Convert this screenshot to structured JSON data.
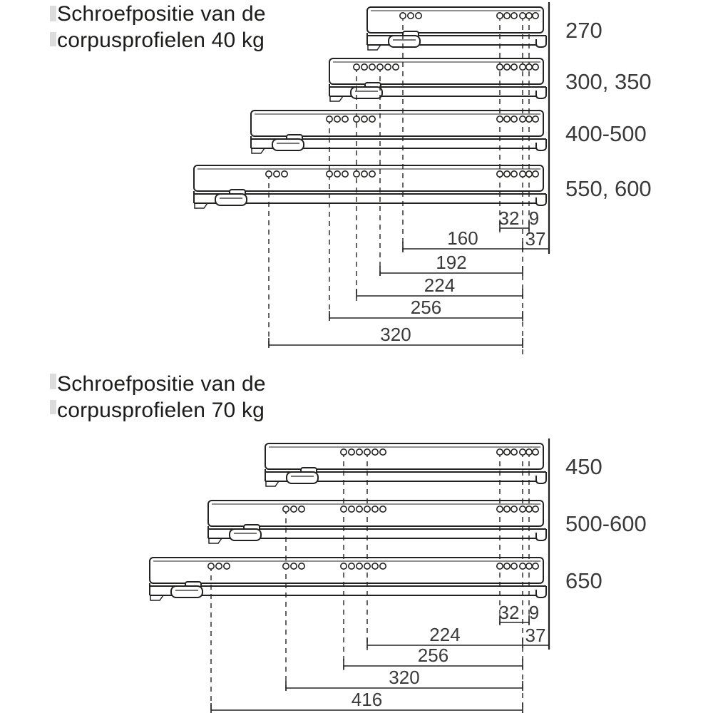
{
  "diagram": {
    "line_color": "#222220",
    "label_color": "#3a3a3a",
    "sections": [
      {
        "id": "40kg",
        "title_lines": [
          "Schroefpositie van de",
          "corpusprofielen 40 kg"
        ],
        "rails": [
          {
            "label": "270",
            "front_hole_positions_mm": [
              160
            ]
          },
          {
            "label": "300, 350",
            "front_hole_positions_mm": [
              224,
              192
            ]
          },
          {
            "label": "400-500",
            "front_hole_positions_mm": [
              256,
              224
            ]
          },
          {
            "label": "550, 600",
            "front_hole_positions_mm": [
              320,
              256,
              224
            ]
          }
        ],
        "rear_dims": {
          "hole_spacing": "32",
          "hole_offset": "9",
          "rear_distance": "37"
        },
        "length_dims": [
          "160",
          "192",
          "224",
          "256",
          "320"
        ]
      },
      {
        "id": "70kg",
        "title_lines": [
          "Schroefpositie van de",
          "corpusprofielen 70 kg"
        ],
        "rails": [
          {
            "label": "450",
            "front_hole_positions_mm": [
              256,
              224
            ]
          },
          {
            "label": "500-600",
            "front_hole_positions_mm": [
              320,
              256,
              224
            ]
          },
          {
            "label": "650",
            "front_hole_positions_mm": [
              416,
              320,
              256,
              224
            ]
          }
        ],
        "rear_dims": {
          "hole_spacing": "32",
          "hole_offset": "9",
          "rear_distance": "37"
        },
        "length_dims": [
          "224",
          "256",
          "320",
          "416"
        ]
      }
    ]
  }
}
